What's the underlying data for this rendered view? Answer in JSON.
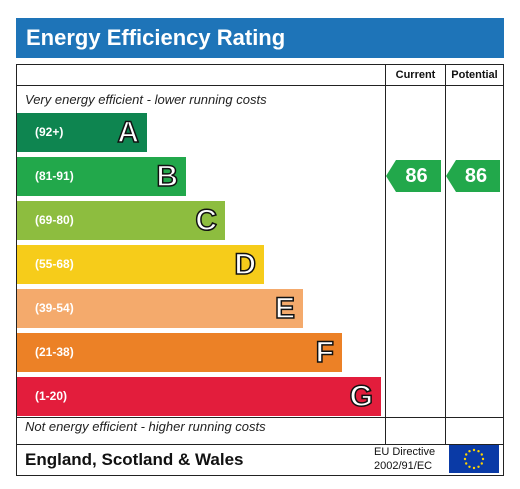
{
  "title": "Energy Efficiency Rating",
  "columns": {
    "current": "Current",
    "potential": "Potential"
  },
  "top_caption": "Very energy efficient - lower running costs",
  "bottom_caption": "Not energy efficient - higher running costs",
  "bands": [
    {
      "range": "(92+)",
      "letter": "A",
      "color": "#0e8550"
    },
    {
      "range": "(81-91)",
      "letter": "B",
      "color": "#22a84b"
    },
    {
      "range": "(69-80)",
      "letter": "C",
      "color": "#8dbd3f"
    },
    {
      "range": "(55-68)",
      "letter": "D",
      "color": "#f6cc1a"
    },
    {
      "range": "(39-54)",
      "letter": "E",
      "color": "#f4aa6c"
    },
    {
      "range": "(21-38)",
      "letter": "F",
      "color": "#ec8126"
    },
    {
      "range": "(1-20)",
      "letter": "G",
      "color": "#e31d3c"
    }
  ],
  "current_rating": {
    "value": "86",
    "band": "B",
    "color": "#22a84b"
  },
  "potential_rating": {
    "value": "86",
    "band": "B",
    "color": "#22a84b"
  },
  "footer": {
    "region": "England, Scotland & Wales",
    "directive_line1": "EU Directive",
    "directive_line2": "2002/91/EC",
    "flag_icon": "eu-flag-icon"
  }
}
